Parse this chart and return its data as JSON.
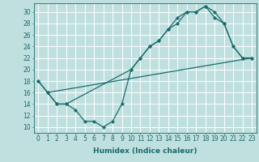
{
  "background_color": "#c0e0e0",
  "grid_color": "#ffffff",
  "line_color": "#1a6b6b",
  "line_width": 0.9,
  "marker": "D",
  "marker_size": 2.2,
  "xlabel": "Humidex (Indice chaleur)",
  "xlabel_fontsize": 6.5,
  "tick_fontsize": 5.5,
  "xlim": [
    -0.5,
    23.5
  ],
  "ylim": [
    9.0,
    31.5
  ],
  "yticks": [
    10,
    12,
    14,
    16,
    18,
    20,
    22,
    24,
    26,
    28,
    30
  ],
  "xticks": [
    0,
    1,
    2,
    3,
    4,
    5,
    6,
    7,
    8,
    9,
    10,
    11,
    12,
    13,
    14,
    15,
    16,
    17,
    18,
    19,
    20,
    21,
    22,
    23
  ],
  "series1_x": [
    0,
    1,
    2,
    3,
    4,
    5,
    6,
    7,
    8,
    9,
    10,
    11,
    12,
    13,
    14,
    15,
    16,
    17,
    18,
    19,
    20,
    21,
    22,
    23
  ],
  "series1_y": [
    18,
    16,
    14,
    14,
    13,
    11,
    11,
    10,
    11,
    14,
    20,
    22,
    24,
    25,
    27,
    28,
    30,
    30,
    31,
    29,
    28,
    24,
    22,
    22
  ],
  "series2_x": [
    0,
    1,
    2,
    3,
    10,
    11,
    12,
    13,
    14,
    15,
    16,
    17,
    18,
    19,
    20,
    21,
    22,
    23
  ],
  "series2_y": [
    18,
    16,
    14,
    14,
    20,
    22,
    24,
    25,
    27,
    29,
    30,
    30,
    31,
    30,
    28,
    24,
    22,
    22
  ],
  "series3_x": [
    1,
    23
  ],
  "series3_y": [
    16,
    22
  ]
}
